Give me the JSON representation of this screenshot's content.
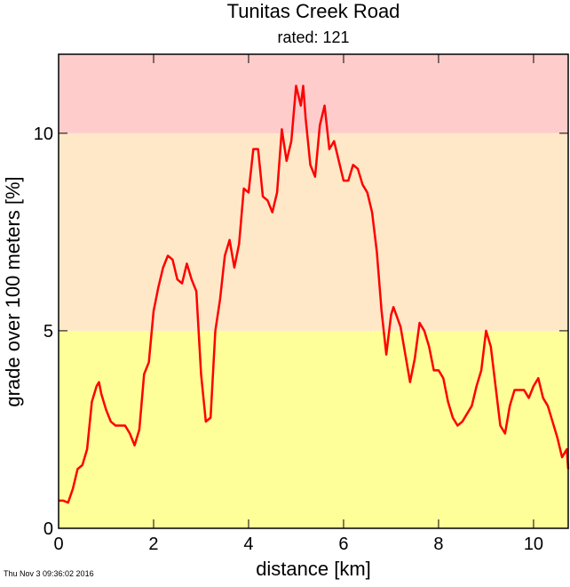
{
  "chart_data": {
    "type": "line",
    "title": "Tunitas Creek Road",
    "subtitle": "rated: 121",
    "xlabel": "distance [km]",
    "ylabel": "grade over 100 meters [%]",
    "footer": "Thu Nov  3 09:36:02 2016",
    "xlim": [
      0,
      10.73
    ],
    "ylim": [
      0,
      12
    ],
    "xticks": [
      0,
      2,
      4,
      6,
      8,
      10
    ],
    "yticks": [
      0,
      5,
      10
    ],
    "bands": [
      {
        "from": 0,
        "to": 5,
        "color": "#ffff99"
      },
      {
        "from": 5,
        "to": 10,
        "color": "#ffe8c8"
      },
      {
        "from": 10,
        "to": 12,
        "color": "#ffcccc"
      }
    ],
    "x": [
      0,
      0.1,
      0.2,
      0.3,
      0.4,
      0.5,
      0.6,
      0.7,
      0.8,
      0.85,
      0.9,
      1.0,
      1.1,
      1.2,
      1.4,
      1.5,
      1.6,
      1.7,
      1.8,
      1.9,
      2.0,
      2.1,
      2.2,
      2.3,
      2.4,
      2.5,
      2.6,
      2.7,
      2.8,
      2.9,
      3.0,
      3.1,
      3.2,
      3.3,
      3.4,
      3.5,
      3.6,
      3.7,
      3.8,
      3.9,
      4.0,
      4.1,
      4.2,
      4.3,
      4.4,
      4.5,
      4.6,
      4.7,
      4.8,
      4.9,
      5.0,
      5.1,
      5.15,
      5.2,
      5.3,
      5.4,
      5.5,
      5.6,
      5.7,
      5.8,
      5.9,
      6.0,
      6.1,
      6.2,
      6.3,
      6.4,
      6.5,
      6.6,
      6.7,
      6.8,
      6.9,
      7.0,
      7.05,
      7.2,
      7.3,
      7.4,
      7.5,
      7.6,
      7.7,
      7.8,
      7.9,
      8.0,
      8.1,
      8.2,
      8.3,
      8.4,
      8.5,
      8.6,
      8.7,
      8.8,
      8.9,
      9.0,
      9.1,
      9.2,
      9.3,
      9.4,
      9.5,
      9.6,
      9.7,
      9.8,
      9.9,
      10.0,
      10.1,
      10.2,
      10.3,
      10.4,
      10.5,
      10.6,
      10.7,
      10.73
    ],
    "series": [
      {
        "name": "grade",
        "color": "#ff0000",
        "values": [
          0.7,
          0.7,
          0.65,
          1.0,
          1.5,
          1.6,
          2.0,
          3.2,
          3.6,
          3.7,
          3.4,
          3.0,
          2.7,
          2.6,
          2.6,
          2.4,
          2.1,
          2.5,
          3.9,
          4.2,
          5.5,
          6.1,
          6.6,
          6.9,
          6.8,
          6.3,
          6.2,
          6.7,
          6.3,
          6.0,
          3.9,
          2.7,
          2.8,
          5.0,
          5.8,
          6.9,
          7.3,
          6.6,
          7.2,
          8.6,
          8.5,
          9.6,
          9.6,
          8.4,
          8.3,
          8.0,
          8.5,
          10.1,
          9.3,
          9.8,
          11.2,
          10.7,
          11.2,
          10.4,
          9.2,
          8.9,
          10.2,
          10.7,
          9.6,
          9.8,
          9.3,
          8.8,
          8.8,
          9.2,
          9.1,
          8.7,
          8.5,
          8.0,
          7.0,
          5.5,
          4.4,
          5.4,
          5.6,
          5.1,
          4.4,
          3.7,
          4.3,
          5.2,
          5.0,
          4.6,
          4.0,
          4.0,
          3.8,
          3.2,
          2.8,
          2.6,
          2.7,
          2.9,
          3.1,
          3.6,
          4.0,
          5.0,
          4.6,
          3.6,
          2.6,
          2.4,
          3.1,
          3.5,
          3.5,
          3.5,
          3.3,
          3.6,
          3.8,
          3.3,
          3.1,
          2.7,
          2.3,
          1.8,
          2.0,
          1.5
        ]
      }
    ]
  }
}
